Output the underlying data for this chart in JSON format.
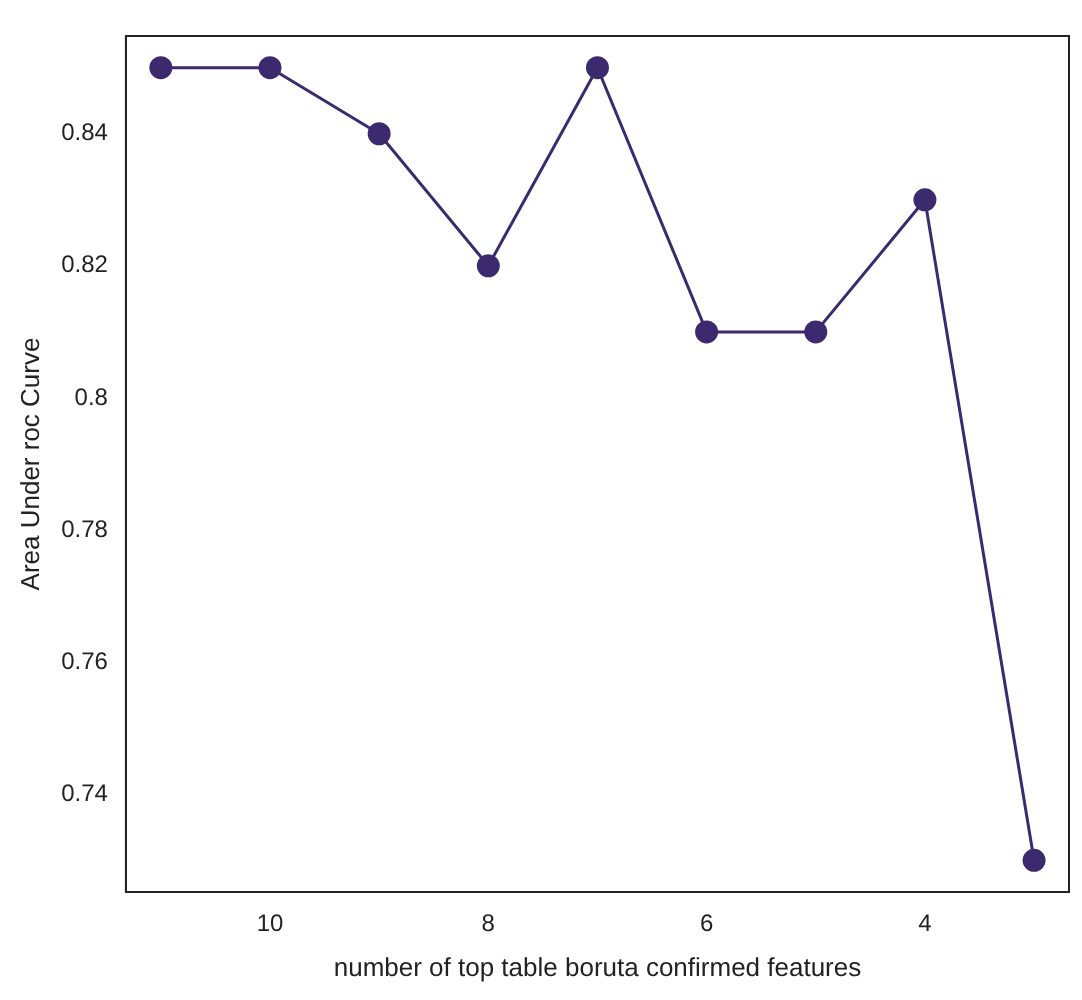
{
  "chart_data": {
    "type": "line",
    "xlabel": "number of top table boruta confirmed features",
    "ylabel": "Area Under roc Curve",
    "x": [
      11,
      10,
      9,
      8,
      7,
      6,
      5,
      4,
      3
    ],
    "series": [
      {
        "color": "#3b2a6e",
        "values": [
          0.85,
          0.85,
          0.84,
          0.82,
          0.85,
          0.81,
          0.81,
          0.83,
          0.73
        ]
      }
    ],
    "xlim": [
      11.32,
      2.68
    ],
    "xticks": [
      10,
      8,
      6,
      4
    ],
    "ylim": [
      0.7252,
      0.8548
    ],
    "yticks": [
      0.74,
      0.76,
      0.78,
      0.8,
      0.82,
      0.84
    ],
    "grid": false,
    "legend": false,
    "marker": "circle",
    "line_style": "solid"
  }
}
